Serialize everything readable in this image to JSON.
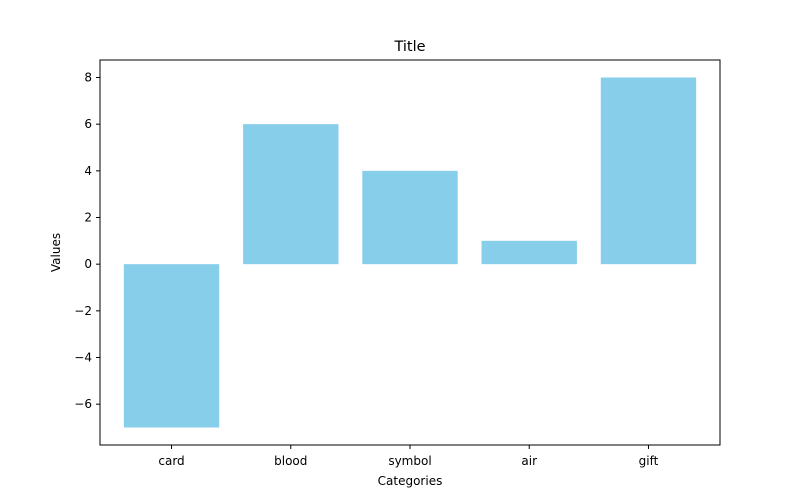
{
  "chart_data": {
    "type": "bar",
    "title": "Title",
    "xlabel": "Categories",
    "ylabel": "Values",
    "categories": [
      "card",
      "blood",
      "symbol",
      "air",
      "gift"
    ],
    "values": [
      -7,
      6,
      4,
      1,
      8
    ],
    "ylim": [
      -7.75,
      8.75
    ],
    "yticks": [
      -6,
      -4,
      -2,
      0,
      2,
      4,
      6,
      8
    ],
    "ytick_labels": [
      "−6",
      "−4",
      "−2",
      "0",
      "2",
      "4",
      "6",
      "8"
    ],
    "bar_color": "#87ceeb",
    "grid": false,
    "legend": "none"
  }
}
